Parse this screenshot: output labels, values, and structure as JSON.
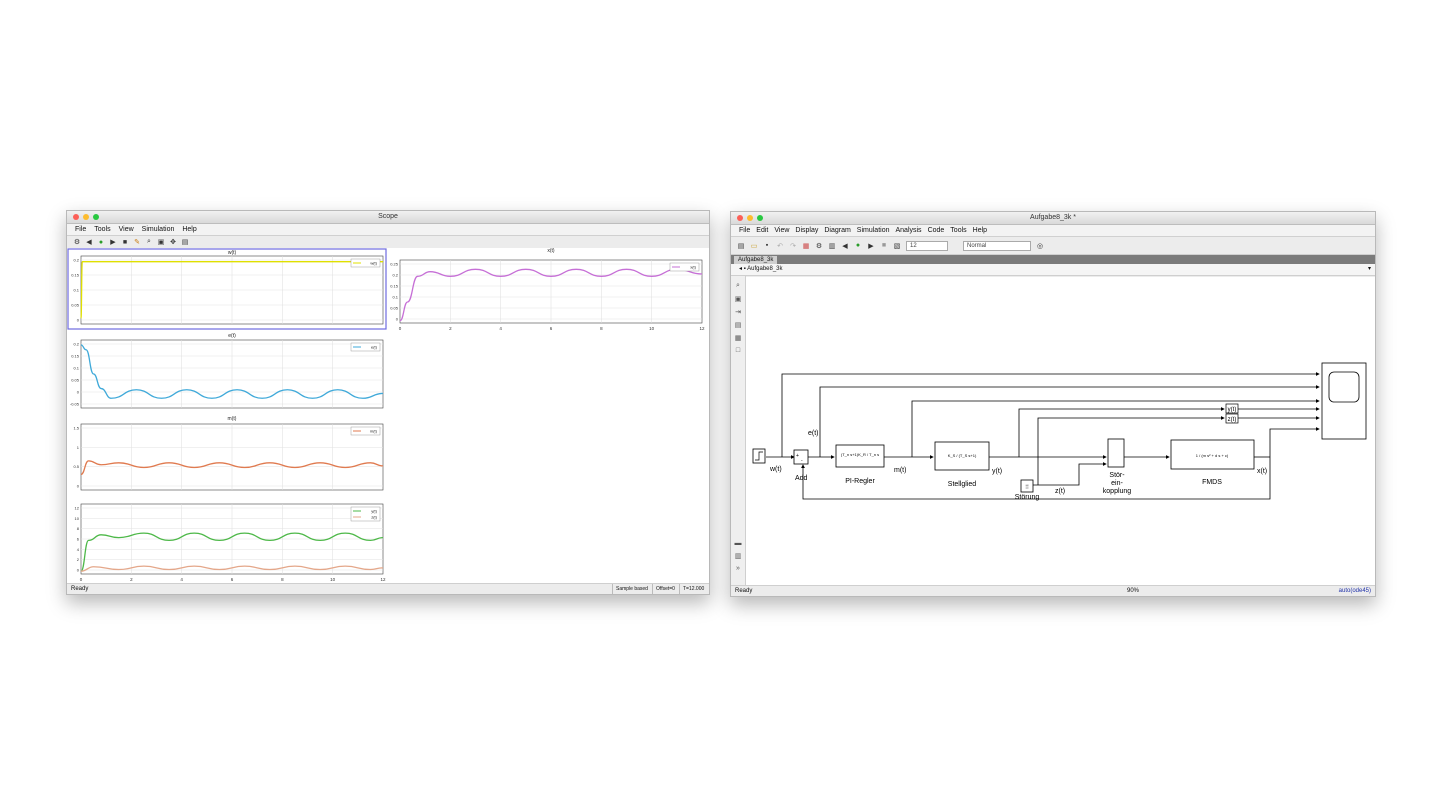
{
  "scope": {
    "title": "Scope",
    "menu": [
      "File",
      "Tools",
      "View",
      "Simulation",
      "Help"
    ],
    "status": {
      "left": "Ready",
      "mode": "Sample based",
      "offset": "Offset=0",
      "time": "T=12.000"
    },
    "icons": [
      "settings-icon",
      "step-back-icon",
      "run-icon",
      "step-forward-icon",
      "stop-icon",
      "highlight-icon",
      "zoom-icon",
      "fit-icon",
      "cursor-icon",
      "measure-icon"
    ]
  },
  "plots": [
    {
      "title": "w(t)",
      "legend": [
        "w(t)"
      ],
      "color": "#e0e000",
      "yticks": [
        "0.2",
        "0.15",
        "0.1",
        "0.05",
        "0"
      ],
      "ylim": [
        -0.02,
        0.22
      ]
    },
    {
      "title": "e(t)",
      "legend": [
        "e(t)"
      ],
      "color": "#3fa9d9",
      "yticks": [
        "0.2",
        "0.15",
        "0.1",
        "0.05",
        "0",
        "-0.05"
      ],
      "ylim": [
        -0.06,
        0.22
      ]
    },
    {
      "title": "m(t)",
      "legend": [
        "m(t)"
      ],
      "color": "#e07a4f",
      "yticks": [
        "1.5",
        "1",
        "0.5",
        "0"
      ],
      "ylim": [
        -0.1,
        1.6
      ]
    },
    {
      "title": "",
      "legend": [
        "y(t)",
        "z(t)"
      ],
      "color": "#4db848",
      "color2": "#e4a78a",
      "yticks": [
        "12",
        "10",
        "8",
        "6",
        "4",
        "2",
        "0"
      ],
      "xticks": [
        "0",
        "2",
        "4",
        "6",
        "8",
        "10",
        "12"
      ],
      "ylim": [
        -0.5,
        12
      ]
    },
    {
      "title": "x(t)",
      "legend": [
        "x(t)"
      ],
      "color": "#c66fd6",
      "yticks": [
        "0.25",
        "0.2",
        "0.15",
        "0.1",
        "0.05",
        "0"
      ],
      "xticks": [
        "0",
        "2",
        "4",
        "6",
        "8",
        "10",
        "12"
      ],
      "ylim": [
        -0.01,
        0.26
      ]
    }
  ],
  "chart_data": [
    {
      "type": "line",
      "title": "w(t)",
      "xlim": [
        0,
        12
      ],
      "series": [
        {
          "name": "w(t)",
          "x": [
            0,
            0.05,
            12
          ],
          "y": [
            0,
            0.2,
            0.2
          ]
        }
      ]
    },
    {
      "type": "line",
      "title": "e(t)",
      "xlim": [
        0,
        12
      ],
      "series": [
        {
          "name": "e(t)",
          "x": [
            0,
            0.2,
            0.5,
            0.8,
            1.2,
            2.2,
            3.2,
            4.2,
            5.2,
            6.2,
            7.2,
            8.2,
            9.2,
            10.2,
            11.2,
            12
          ],
          "y": [
            0.2,
            0.18,
            0.08,
            0.02,
            -0.02,
            0.015,
            -0.02,
            0.015,
            -0.02,
            0.015,
            -0.02,
            0.015,
            -0.02,
            0.015,
            -0.02,
            0.0
          ]
        }
      ]
    },
    {
      "type": "line",
      "title": "m(t)",
      "xlim": [
        0,
        12
      ],
      "series": [
        {
          "name": "m(t)",
          "x": [
            0,
            0.3,
            0.8,
            1.5,
            2.5,
            3.5,
            4.5,
            5.5,
            6.5,
            7.5,
            8.5,
            9.5,
            10.5,
            11.5,
            12
          ],
          "y": [
            0.3,
            0.65,
            0.55,
            0.6,
            0.48,
            0.6,
            0.48,
            0.6,
            0.48,
            0.6,
            0.48,
            0.6,
            0.48,
            0.6,
            0.52
          ]
        }
      ]
    },
    {
      "type": "line",
      "xlim": [
        0,
        12
      ],
      "series": [
        {
          "name": "y(t)",
          "x": [
            0,
            0.3,
            0.8,
            1.5,
            2.5,
            3.5,
            4.5,
            5.5,
            6.5,
            7.5,
            8.5,
            9.5,
            10.5,
            11.5,
            12
          ],
          "y": [
            0,
            5.5,
            6.5,
            6.0,
            6.8,
            5.5,
            6.8,
            5.5,
            6.8,
            5.5,
            6.8,
            5.5,
            6.8,
            5.5,
            6.0
          ]
        },
        {
          "name": "z(t)",
          "x": [
            0,
            0.5,
            1.5,
            2.5,
            3.5,
            4.5,
            5.5,
            6.5,
            7.5,
            8.5,
            9.5,
            10.5,
            11.5,
            12
          ],
          "y": [
            0,
            0.8,
            0.3,
            0.9,
            0.3,
            0.9,
            0.3,
            0.9,
            0.3,
            0.9,
            0.3,
            0.9,
            0.3,
            0.6
          ]
        }
      ]
    },
    {
      "type": "line",
      "title": "x(t)",
      "xlim": [
        0,
        12
      ],
      "series": [
        {
          "name": "x(t)",
          "x": [
            0,
            0.3,
            0.7,
            1.2,
            2.0,
            3.0,
            4.0,
            5.0,
            6.0,
            7.0,
            8.0,
            9.0,
            10.0,
            11.0,
            12.0
          ],
          "y": [
            0,
            0.08,
            0.19,
            0.21,
            0.19,
            0.22,
            0.19,
            0.22,
            0.19,
            0.22,
            0.19,
            0.22,
            0.19,
            0.22,
            0.2
          ]
        }
      ]
    }
  ],
  "simulink": {
    "title": "Aufgabe8_3k *",
    "menu": [
      "File",
      "Edit",
      "View",
      "Display",
      "Diagram",
      "Simulation",
      "Analysis",
      "Code",
      "Tools",
      "Help"
    ],
    "stop_time": "12",
    "sim_mode": "Normal",
    "tab": "Aufgabe8_3k",
    "breadcrumb": "Aufgabe8_3k",
    "status": {
      "left": "Ready",
      "zoom": "90%",
      "solver": "auto(ode45)"
    },
    "blocks": {
      "add": "Add",
      "pi": "PI-Regler",
      "pi_formula": "(T_n s+1)K_R / T_n s",
      "stell": "Stellglied",
      "stell_formula": "K_S / (T_S s+1)",
      "fmds": "FMDS",
      "fmds_formula": "1 / (m s² + d s + c)",
      "stor": "Störung",
      "storkopp_1": "Stör-",
      "storkopp_2": "ein-",
      "storkopp_3": "kopplung"
    },
    "signals": {
      "w": "w(t)",
      "e": "e(t)",
      "m": "m(t)",
      "y": "y(t)",
      "z": "z(t)",
      "x": "x(t)",
      "yg": "y(t)",
      "zg": "z(t)"
    }
  }
}
